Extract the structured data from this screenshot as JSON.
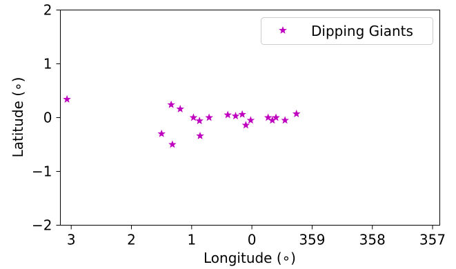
{
  "chart_data": {
    "type": "scatter",
    "title": "",
    "xlabel": "Longitude (∘)",
    "ylabel": "Latitude (∘)",
    "xlim": [
      3.18,
      356.88
    ],
    "ylim": [
      -2,
      2
    ],
    "x_reversed": true,
    "grid": false,
    "legend": "top-right",
    "x_ticks": [
      {
        "value": 3,
        "label": "3"
      },
      {
        "value": 2,
        "label": "2"
      },
      {
        "value": 1,
        "label": "1"
      },
      {
        "value": 0,
        "label": "0"
      },
      {
        "value": 359,
        "label": "359"
      },
      {
        "value": 358,
        "label": "358"
      },
      {
        "value": 357,
        "label": "357"
      }
    ],
    "y_ticks": [
      {
        "value": 2,
        "label": "2"
      },
      {
        "value": 1,
        "label": "1"
      },
      {
        "value": 0,
        "label": "0"
      },
      {
        "value": -1,
        "label": "−1"
      },
      {
        "value": -2,
        "label": "−2"
      }
    ],
    "series": [
      {
        "name": "Dipping Giants",
        "marker": "star",
        "color": "#bf00bf",
        "points": [
          {
            "x": 3.07,
            "y": 0.34
          },
          {
            "x": 1.5,
            "y": -0.3
          },
          {
            "x": 1.34,
            "y": 0.24
          },
          {
            "x": 1.32,
            "y": -0.5
          },
          {
            "x": 1.19,
            "y": 0.16
          },
          {
            "x": 0.97,
            "y": 0.0
          },
          {
            "x": 0.87,
            "y": -0.06
          },
          {
            "x": 0.86,
            "y": -0.34
          },
          {
            "x": 0.71,
            "y": 0.0
          },
          {
            "x": 0.4,
            "y": 0.05
          },
          {
            "x": 0.27,
            "y": 0.03
          },
          {
            "x": 0.16,
            "y": 0.06
          },
          {
            "x": 0.1,
            "y": -0.14
          },
          {
            "x": 0.02,
            "y": -0.05
          },
          {
            "x": 359.73,
            "y": 0.0
          },
          {
            "x": 359.66,
            "y": -0.05
          },
          {
            "x": 359.6,
            "y": 0.0
          },
          {
            "x": 359.45,
            "y": -0.05
          },
          {
            "x": 359.26,
            "y": 0.07
          }
        ]
      }
    ]
  },
  "legend": {
    "label": "Dipping Giants"
  }
}
